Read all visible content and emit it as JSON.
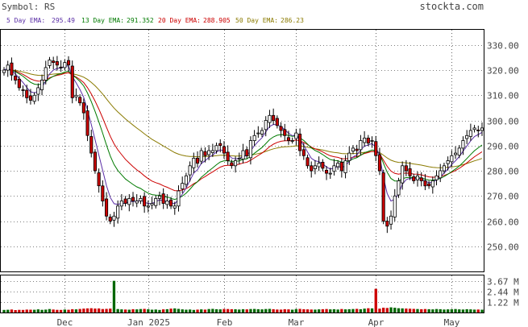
{
  "header": {
    "symbol_text": "Symbol: RS",
    "brand": "stockta.com"
  },
  "legend": [
    {
      "label": "5 Day EMA:",
      "value": "295.49",
      "color": "#5a2ea6"
    },
    {
      "label": "13 Day EMA:",
      "value": "291.352",
      "color": "#007a00"
    },
    {
      "label": "20 Day EMA:",
      "value": "288.905",
      "color": "#cc0000"
    },
    {
      "label": "50 Day EMA:",
      "value": "286.23",
      "color": "#8a7a00"
    }
  ],
  "colors": {
    "up_fill": "#ffffff",
    "down_fill": "#cc0000",
    "candle_outline": "#000000",
    "volume_up": "#006600",
    "volume_down": "#cc0000",
    "grid": "#000000",
    "ema5": "#5a2ea6",
    "ema13": "#007a00",
    "ema20": "#cc0000",
    "ema50": "#8a7a00"
  },
  "chart_data": {
    "type": "candlestick",
    "price_axis": {
      "ticks": [
        "330.00",
        "320.00",
        "310.00",
        "300.00",
        "290.00",
        "280.00",
        "270.00",
        "260.00",
        "250.00"
      ],
      "range": [
        240,
        336
      ]
    },
    "volume_axis": {
      "ticks": [
        "3.67 M",
        "2.44 M",
        "1.22 M"
      ],
      "range": [
        0,
        4.3
      ]
    },
    "x_labels": [
      {
        "label": "Dec",
        "index": 16
      },
      {
        "label": "Jan 2025",
        "index": 38
      },
      {
        "label": "Feb",
        "index": 58
      },
      {
        "label": "Mar",
        "index": 77
      },
      {
        "label": "Apr",
        "index": 98
      },
      {
        "label": "May",
        "index": 118
      }
    ],
    "closes": [
      320,
      322,
      318,
      316,
      313,
      312,
      309,
      308,
      310,
      313,
      316,
      321,
      324,
      323,
      322,
      321,
      323,
      322,
      309,
      310,
      307,
      303,
      294,
      287,
      280,
      274,
      268,
      262,
      260,
      262,
      266,
      268,
      267,
      269,
      268,
      268,
      269,
      266,
      266,
      267,
      269,
      270,
      267,
      268,
      266,
      266,
      272,
      275,
      278,
      282,
      285,
      283,
      288,
      286,
      288,
      288,
      290,
      290,
      287,
      284,
      282,
      284,
      285,
      288,
      286,
      292,
      294,
      295,
      296,
      300,
      302,
      300,
      298,
      296,
      294,
      292,
      292,
      295,
      288,
      286,
      282,
      280,
      282,
      283,
      281,
      279,
      279,
      282,
      283,
      280,
      284,
      287,
      289,
      288,
      292,
      293,
      291,
      292,
      286,
      280,
      260,
      258,
      262,
      270,
      276,
      282,
      280,
      278,
      276,
      278,
      276,
      274,
      274,
      276,
      278,
      280,
      282,
      284,
      286,
      287,
      289,
      292,
      294,
      296,
      297,
      296,
      297
    ],
    "volume": [
      0.3,
      0.32,
      0.35,
      0.28,
      0.31,
      0.3,
      0.34,
      0.33,
      0.32,
      0.36,
      0.31,
      0.34,
      0.4,
      0.35,
      0.31,
      0.3,
      0.35,
      0.32,
      0.38,
      0.36,
      0.41,
      0.45,
      0.48,
      0.5,
      0.46,
      0.47,
      0.4,
      0.42,
      0.45,
      3.67,
      0.4,
      0.36,
      0.35,
      0.33,
      0.38,
      0.36,
      0.4,
      0.42,
      0.38,
      0.33,
      0.35,
      0.3,
      0.36,
      0.38,
      0.45,
      0.48,
      0.42,
      0.36,
      0.33,
      0.35,
      0.3,
      0.34,
      0.36,
      0.34,
      0.4,
      0.42,
      0.38,
      0.36,
      0.41,
      0.4,
      0.38,
      0.37,
      0.35,
      0.38,
      0.36,
      0.4,
      0.41,
      0.38,
      0.36,
      0.4,
      0.42,
      0.38,
      0.35,
      0.34,
      0.38,
      0.36,
      0.33,
      0.4,
      0.42,
      0.38,
      0.36,
      0.35,
      0.34,
      0.36,
      0.38,
      0.4,
      0.36,
      0.38,
      0.35,
      0.4,
      0.36,
      0.38,
      0.4,
      0.42,
      0.38,
      0.45,
      0.5,
      0.48,
      2.75,
      0.45,
      0.55,
      0.52,
      0.6,
      0.55,
      0.5,
      0.48,
      0.46,
      0.44,
      0.42,
      0.4,
      0.38,
      0.4,
      0.38,
      0.36,
      0.4,
      0.38,
      0.35,
      0.36,
      0.38,
      0.4,
      0.36,
      0.35,
      0.38,
      0.36,
      0.34,
      0.35,
      0.33
    ]
  }
}
